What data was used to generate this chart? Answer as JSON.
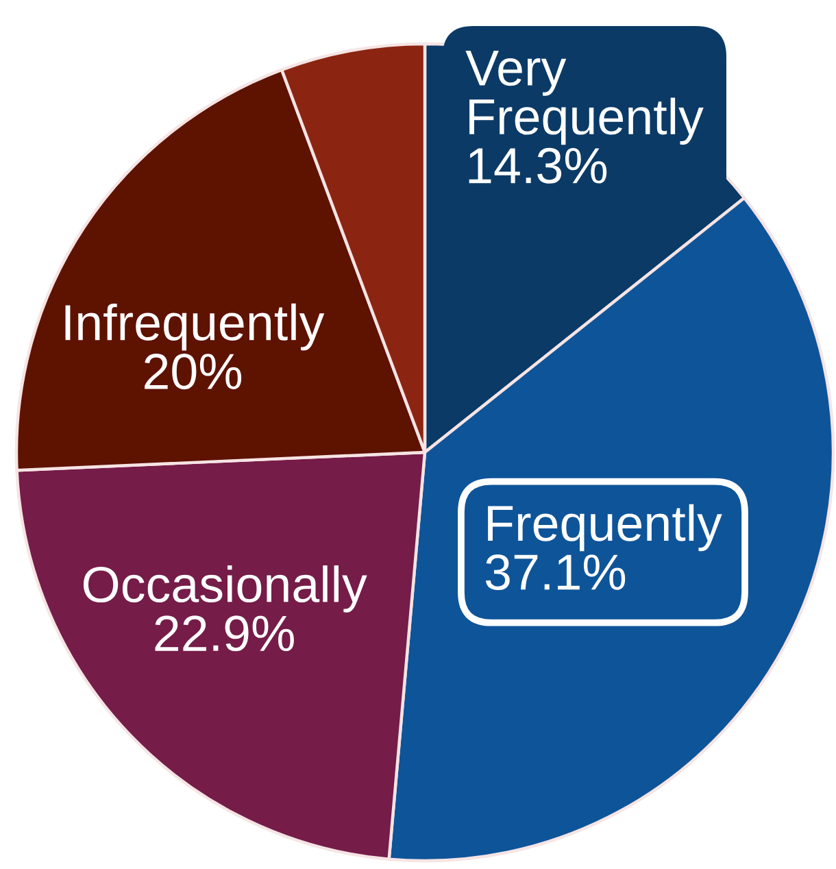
{
  "chart_data": {
    "type": "pie",
    "categories": [
      "Very Frequently",
      "Frequently",
      "Occasionally",
      "Infrequently",
      null
    ],
    "values": [
      14.3,
      37.1,
      22.9,
      20,
      5.7
    ],
    "colors": [
      "#0b3a66",
      "#0e5499",
      "#751c48",
      "#5e1200",
      "#8b2511"
    ],
    "value_labels": [
      "14.3%",
      "37.1%",
      "22.9%",
      "20%",
      null
    ]
  }
}
